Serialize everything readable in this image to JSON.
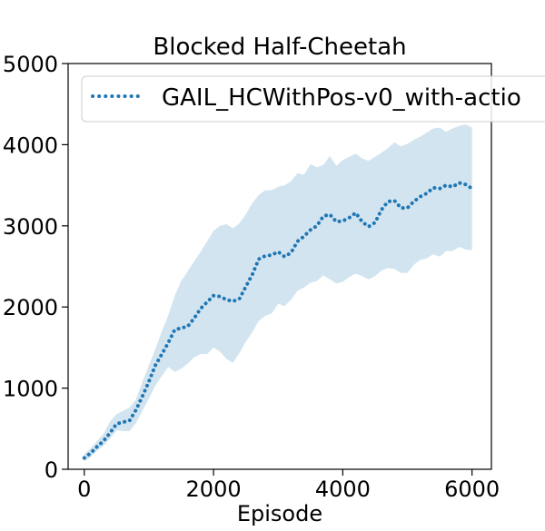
{
  "chart_data": {
    "type": "line",
    "title": "Blocked Half-Cheetah",
    "xlabel": "Episode",
    "ylabel": "",
    "xlim": [
      -250,
      6300
    ],
    "ylim": [
      0,
      5000
    ],
    "x_ticks": [
      0,
      2000,
      4000,
      6000
    ],
    "y_ticks": [
      0,
      1000,
      2000,
      3000,
      4000,
      5000
    ],
    "x_tick_labels": [
      "0",
      "2000",
      "4000",
      "6000"
    ],
    "y_tick_labels": [
      "0",
      "1000",
      "2000",
      "3000",
      "4000",
      "5000"
    ],
    "grid": false,
    "legend": {
      "position": "top-left",
      "entries": [
        "GAIL_HCWithPos-v0_with-actio"
      ]
    },
    "colors": {
      "series": "#1f77b4",
      "band": "#1f77b4"
    },
    "series": [
      {
        "name": "GAIL_HCWithPos-v0_with-actio",
        "style": "dotted",
        "x": [
          0,
          100,
          200,
          300,
          400,
          500,
          600,
          700,
          800,
          900,
          1000,
          1100,
          1200,
          1300,
          1400,
          1500,
          1600,
          1700,
          1800,
          1900,
          2000,
          2100,
          2200,
          2300,
          2400,
          2500,
          2600,
          2700,
          2800,
          2900,
          3000,
          3100,
          3200,
          3300,
          3400,
          3500,
          3600,
          3700,
          3800,
          3900,
          4000,
          4100,
          4200,
          4300,
          4400,
          4500,
          4600,
          4700,
          4800,
          4900,
          5000,
          5100,
          5200,
          5300,
          5400,
          5500,
          5600,
          5700,
          5800,
          5900,
          6000
        ],
        "y": [
          140,
          200,
          280,
          350,
          450,
          560,
          580,
          600,
          730,
          900,
          1080,
          1280,
          1420,
          1560,
          1720,
          1740,
          1760,
          1860,
          1980,
          2060,
          2140,
          2130,
          2090,
          2070,
          2100,
          2250,
          2400,
          2590,
          2630,
          2640,
          2680,
          2620,
          2670,
          2810,
          2870,
          2950,
          3000,
          3120,
          3140,
          3050,
          3060,
          3100,
          3160,
          3050,
          2990,
          3040,
          3200,
          3300,
          3310,
          3220,
          3220,
          3300,
          3360,
          3400,
          3470,
          3460,
          3500,
          3480,
          3530,
          3510,
          3460
        ],
        "band_low": [
          100,
          150,
          230,
          290,
          380,
          480,
          470,
          470,
          570,
          720,
          870,
          1030,
          1150,
          1260,
          1200,
          1240,
          1300,
          1380,
          1420,
          1420,
          1500,
          1450,
          1360,
          1310,
          1430,
          1570,
          1690,
          1830,
          1890,
          1920,
          2040,
          2010,
          2090,
          2200,
          2240,
          2300,
          2320,
          2390,
          2340,
          2290,
          2310,
          2370,
          2410,
          2380,
          2340,
          2380,
          2450,
          2480,
          2470,
          2420,
          2420,
          2520,
          2580,
          2600,
          2650,
          2620,
          2690,
          2690,
          2740,
          2710,
          2700
        ],
        "band_high": [
          190,
          260,
          350,
          440,
          590,
          680,
          720,
          760,
          860,
          1080,
          1280,
          1480,
          1700,
          1900,
          2140,
          2320,
          2440,
          2560,
          2680,
          2810,
          2940,
          3000,
          3020,
          2970,
          3030,
          3140,
          3280,
          3380,
          3440,
          3440,
          3480,
          3500,
          3550,
          3650,
          3630,
          3760,
          3720,
          3750,
          3860,
          3740,
          3810,
          3850,
          3890,
          3830,
          3800,
          3850,
          3900,
          3960,
          4030,
          3980,
          4010,
          4060,
          4100,
          4150,
          4200,
          4210,
          4160,
          4200,
          4230,
          4250,
          4210
        ]
      }
    ]
  }
}
